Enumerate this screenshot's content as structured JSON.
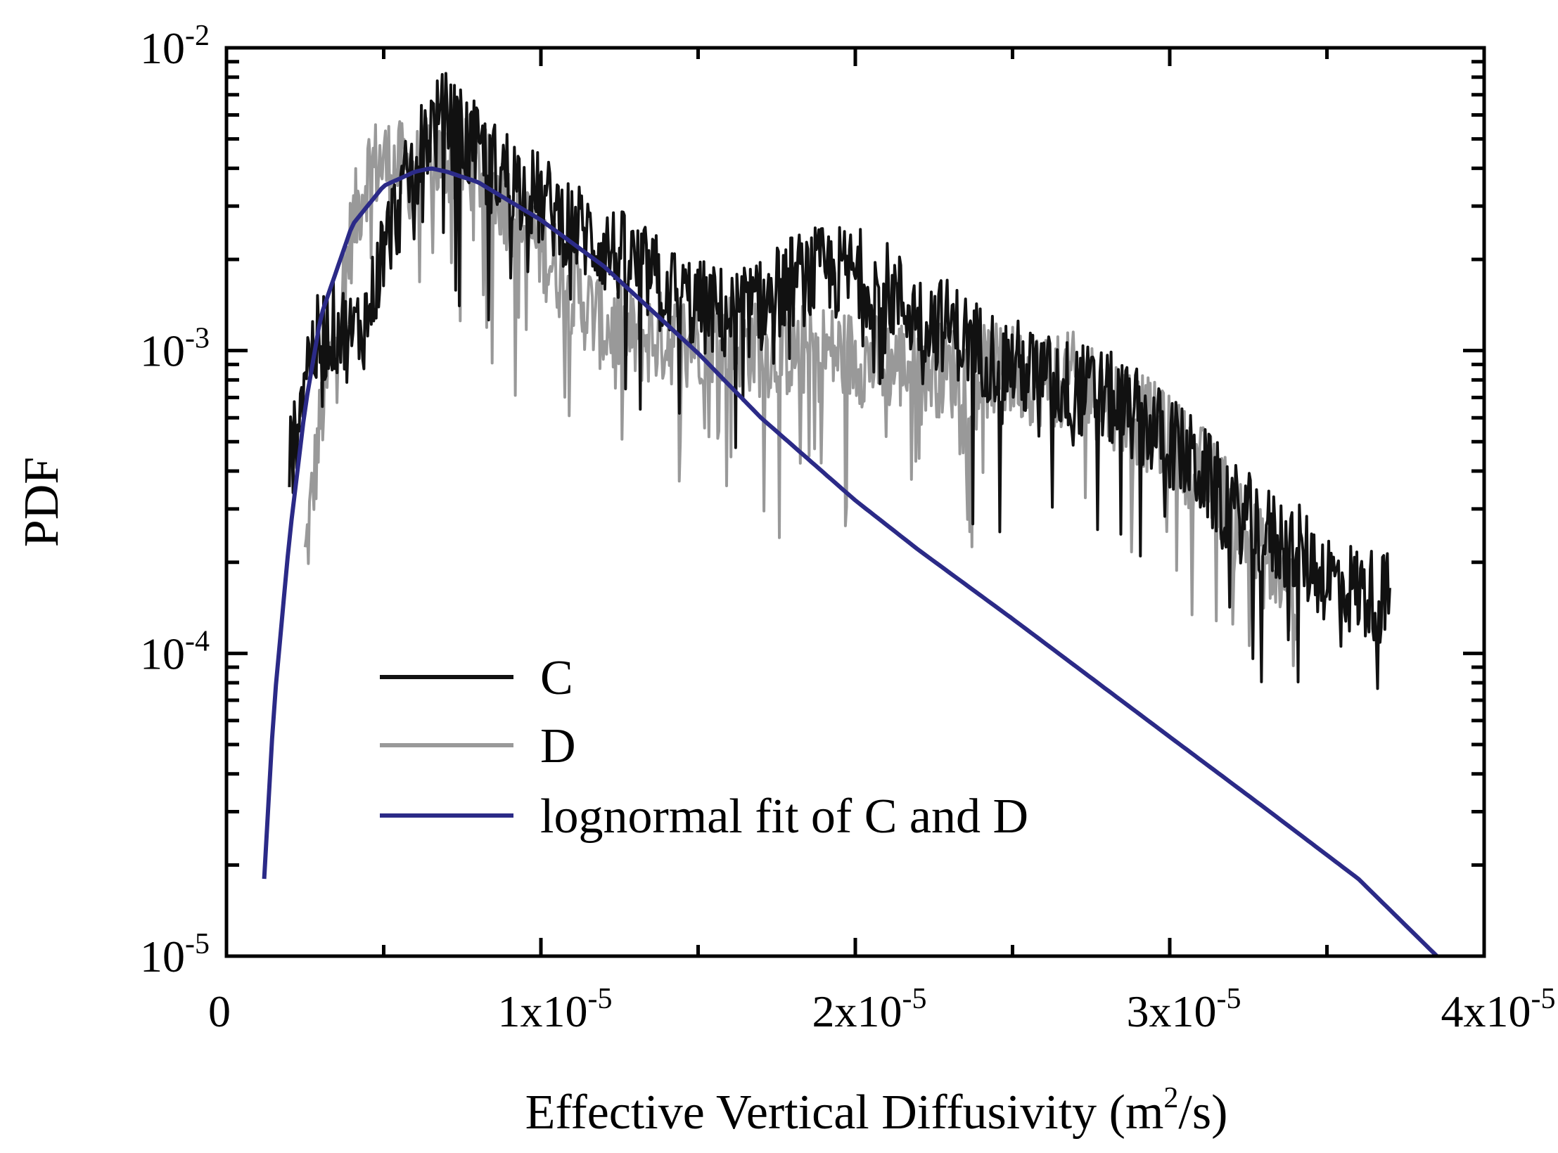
{
  "chart_data": {
    "type": "line",
    "title": "",
    "xlabel": {
      "main": "Effective Vertical Diffusivity (m",
      "sup": "2",
      "tail": "/s)"
    },
    "ylabel": "PDF",
    "xlim": [
      0,
      4e-05
    ],
    "ylim": [
      1e-05,
      0.01
    ],
    "yscale": "log",
    "grid": false,
    "legend_position": "lower-left",
    "x_ticks": [
      {
        "value": 0,
        "base": "0",
        "exp": ""
      },
      {
        "value": 1e-05,
        "base": "1x10",
        "exp": "-5"
      },
      {
        "value": 2e-05,
        "base": "2x10",
        "exp": "-5"
      },
      {
        "value": 3e-05,
        "base": "3x10",
        "exp": "-5"
      },
      {
        "value": 4e-05,
        "base": "4x10",
        "exp": "-5"
      }
    ],
    "y_ticks": [
      {
        "value": 0.01,
        "base": "10",
        "exp": "-2"
      },
      {
        "value": 0.001,
        "base": "10",
        "exp": "-3"
      },
      {
        "value": 0.0001,
        "base": "10",
        "exp": "-4"
      },
      {
        "value": 1e-05,
        "base": "10",
        "exp": "-5"
      }
    ],
    "series": [
      {
        "name": "C",
        "color": "#111111",
        "style": "noisy",
        "x": [
          2e-06,
          2.5e-06,
          3e-06,
          3.5e-06,
          4e-06,
          4.5e-06,
          5e-06,
          5.5e-06,
          6e-06,
          6.5e-06,
          7e-06,
          7.5e-06,
          8e-06,
          8.5e-06,
          9e-06,
          1e-05,
          1.1e-05,
          1.2e-05,
          1.3e-05,
          1.4e-05,
          1.5e-05,
          1.6e-05,
          1.7e-05,
          1.8e-05,
          1.9e-05,
          2e-05,
          2.1e-05,
          2.2e-05,
          2.3e-05,
          2.4e-05,
          2.5e-05,
          2.6e-05,
          2.7e-05,
          2.8e-05,
          2.9e-05,
          3e-05,
          3.1e-05,
          3.2e-05,
          3.3e-05,
          3.4e-05,
          3.5e-05,
          3.6e-05,
          3.7e-05
        ],
        "y": [
          0.0004,
          0.0009,
          0.0011,
          0.0012,
          0.0011,
          0.0013,
          0.0022,
          0.003,
          0.0042,
          0.0055,
          0.0058,
          0.005,
          0.0045,
          0.004,
          0.0038,
          0.0031,
          0.0026,
          0.0022,
          0.0019,
          0.0016,
          0.0014,
          0.0013,
          0.0014,
          0.0017,
          0.0018,
          0.0018,
          0.0016,
          0.0013,
          0.0012,
          0.001,
          0.0009,
          0.0008,
          0.00075,
          0.0007,
          0.0006,
          0.0005,
          0.0004,
          0.0003,
          0.00025,
          0.00022,
          0.00018,
          0.00016,
          0.00015
        ]
      },
      {
        "name": "D",
        "color": "#999999",
        "style": "noisy",
        "x": [
          2.5e-06,
          3e-06,
          3.5e-06,
          4e-06,
          4.5e-06,
          5e-06,
          5.5e-06,
          6e-06,
          6.5e-06,
          7e-06,
          8e-06,
          9e-06,
          1e-05,
          1.1e-05,
          1.2e-05,
          1.3e-05,
          1.4e-05,
          1.5e-05,
          1.6e-05,
          1.7e-05,
          1.8e-05,
          1.9e-05,
          2e-05,
          2.1e-05,
          2.2e-05,
          2.3e-05,
          2.4e-05,
          2.5e-05,
          2.6e-05,
          2.7e-05,
          2.8e-05,
          2.9e-05,
          3e-05,
          3.1e-05,
          3.2e-05,
          3.3e-05,
          3.4e-05
        ],
        "y": [
          0.0002,
          0.0006,
          0.0012,
          0.0025,
          0.004,
          0.0042,
          0.004,
          0.0038,
          0.0042,
          0.0043,
          0.004,
          0.003,
          0.0022,
          0.0016,
          0.0012,
          0.0011,
          0.0011,
          0.0011,
          0.0011,
          0.001,
          0.001,
          0.001,
          0.00095,
          0.0009,
          0.0009,
          0.00085,
          0.00085,
          0.00085,
          0.0008,
          0.0008,
          0.0007,
          0.0006,
          0.0005,
          0.0004,
          0.0003,
          0.0002,
          0.00015
        ]
      },
      {
        "name": "lognormal fit of C and D",
        "color": "#2b2a87",
        "style": "smooth",
        "x": [
          1.2e-06,
          1.5e-06,
          2e-06,
          2.5e-06,
          3e-06,
          4e-06,
          5e-06,
          6e-06,
          6.5e-06,
          7e-06,
          8e-06,
          1e-05,
          1.2e-05,
          1.5e-05,
          1.7e-05,
          2e-05,
          2.2e-05,
          2.5e-05,
          3e-05,
          3.3e-05,
          3.6e-05,
          3.85e-05
        ],
        "y": [
          1.8e-05,
          6.5e-05,
          0.00024,
          0.00065,
          0.0013,
          0.0026,
          0.0035,
          0.0039,
          0.004,
          0.0039,
          0.0036,
          0.0027,
          0.0019,
          0.00098,
          0.0006,
          0.00032,
          0.00022,
          0.00013,
          5.3e-05,
          3.1e-05,
          1.8e-05,
          1e-05
        ]
      }
    ],
    "annotations": []
  }
}
